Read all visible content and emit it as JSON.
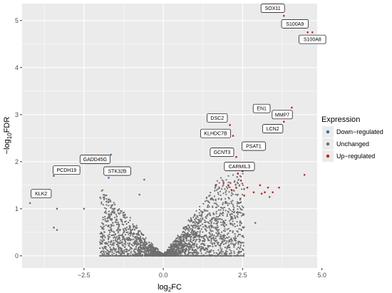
{
  "chart_data": {
    "type": "scatter",
    "title": "",
    "xlabel": "log",
    "xlabel_sub": "2",
    "xlabel_tail": "FC",
    "ylabel": "−log",
    "ylabel_sub": "10",
    "ylabel_tail": "FDR",
    "xlim": [
      -4.45,
      4.85
    ],
    "ylim": [
      -0.26,
      5.36
    ],
    "x_ticks": [
      -2.5,
      0.0,
      2.5,
      5.0
    ],
    "x_tick_labels": [
      "−2.5",
      "0.0",
      "2.5",
      "5.0"
    ],
    "y_ticks": [
      0,
      1,
      2,
      3,
      4,
      5
    ],
    "y_tick_labels": [
      "0",
      "1",
      "2",
      "3",
      "4",
      "5"
    ],
    "grid": true,
    "legend": {
      "title": "Expression",
      "position": "right",
      "items": [
        {
          "label": "Down−regulated",
          "color": "#2E6DB4"
        },
        {
          "label": "Unchanged",
          "color": "#6E6E6E"
        },
        {
          "label": "Up−regulated",
          "color": "#C81E1E"
        }
      ]
    },
    "series": [
      {
        "name": "Down−regulated",
        "color": "#2E6DB4",
        "points": [
          [
            -3.45,
            1.7
          ],
          [
            -1.65,
            2.15
          ],
          [
            -1.72,
            1.66
          ],
          [
            -3.6,
            1.4
          ]
        ]
      },
      {
        "name": "Unchanged",
        "color": "#6E6E6E",
        "points": [
          [
            -4.2,
            1.12
          ],
          [
            -3.35,
            1.0
          ],
          [
            -3.45,
            0.6
          ],
          [
            -3.35,
            0.55
          ],
          [
            -2.5,
            1.0
          ],
          [
            -1.55,
            1.0
          ],
          [
            -0.6,
            1.62
          ],
          [
            -0.75,
            1.3
          ],
          [
            1.55,
            2.15
          ],
          [
            1.8,
            2.2
          ],
          [
            2.9,
            0.7
          ],
          [
            3.35,
            1.25
          ]
        ]
      },
      {
        "name": "Up−regulated",
        "color": "#C81E1E",
        "points": [
          [
            3.8,
            5.1
          ],
          [
            4.55,
            4.75
          ],
          [
            4.7,
            4.75
          ],
          [
            4.35,
            4.65
          ],
          [
            4.05,
            3.15
          ],
          [
            3.95,
            2.95
          ],
          [
            3.55,
            3.0
          ],
          [
            3.8,
            2.85
          ],
          [
            2.1,
            2.78
          ],
          [
            2.2,
            2.55
          ],
          [
            2.6,
            2.25
          ],
          [
            2.3,
            2.1
          ],
          [
            2.45,
            1.9
          ],
          [
            2.6,
            1.95
          ],
          [
            2.5,
            1.8
          ],
          [
            2.35,
            1.75
          ],
          [
            1.65,
            1.5
          ],
          [
            1.9,
            1.55
          ],
          [
            2.05,
            1.5
          ],
          [
            2.15,
            1.4
          ],
          [
            2.3,
            1.45
          ],
          [
            2.45,
            1.6
          ],
          [
            2.65,
            1.45
          ],
          [
            2.85,
            1.35
          ],
          [
            3.05,
            1.5
          ],
          [
            3.2,
            1.35
          ],
          [
            3.3,
            1.45
          ],
          [
            3.45,
            1.35
          ],
          [
            3.65,
            1.45
          ],
          [
            4.45,
            1.72
          ],
          [
            2.55,
            1.28
          ],
          [
            3.1,
            1.32
          ]
        ]
      }
    ],
    "labels": [
      {
        "text": "SOX11",
        "x": 3.45,
        "y": 5.26
      },
      {
        "text": "S100A9",
        "x": 4.15,
        "y": 4.93
      },
      {
        "text": "S100A8",
        "x": 4.7,
        "y": 4.6
      },
      {
        "text": "EN1",
        "x": 3.1,
        "y": 3.13
      },
      {
        "text": "MMP7",
        "x": 3.75,
        "y": 3.0
      },
      {
        "text": "LCN2",
        "x": 3.45,
        "y": 2.7
      },
      {
        "text": "DSC2",
        "x": 1.7,
        "y": 2.93
      },
      {
        "text": "KLHDC7B",
        "x": 1.65,
        "y": 2.6
      },
      {
        "text": "PSAT1",
        "x": 2.85,
        "y": 2.33
      },
      {
        "text": "GCNT3",
        "x": 1.85,
        "y": 2.2
      },
      {
        "text": "CARMIL3",
        "x": 2.4,
        "y": 1.9
      },
      {
        "text": "GADD45G",
        "x": -2.15,
        "y": 2.05
      },
      {
        "text": "STK32B",
        "x": -1.45,
        "y": 1.8
      },
      {
        "text": "PCDH19",
        "x": -3.05,
        "y": 1.82
      },
      {
        "text": "KLK2",
        "x": -3.85,
        "y": 1.32
      }
    ]
  }
}
